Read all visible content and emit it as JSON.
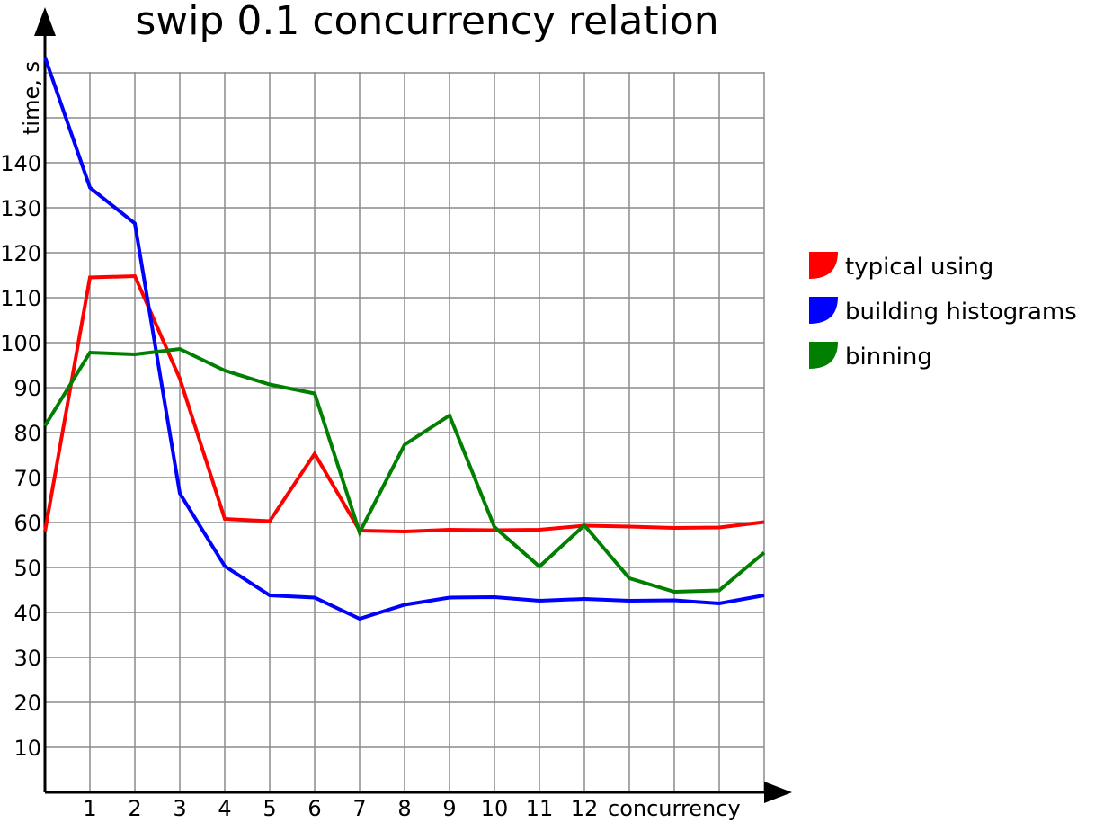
{
  "chart_data": {
    "type": "line",
    "title": "swip 0.1 concurrency relation",
    "xlabel": "concurrency",
    "ylabel": "time, s",
    "x": [
      0,
      1,
      2,
      3,
      4,
      5,
      6,
      7,
      8,
      9,
      10,
      11,
      12,
      13,
      14,
      15,
      16
    ],
    "xticks": [
      "1",
      "2",
      "3",
      "4",
      "5",
      "6",
      "7",
      "8",
      "9",
      "10",
      "11",
      "12"
    ],
    "yticks": [
      "10",
      "20",
      "30",
      "40",
      "50",
      "60",
      "70",
      "80",
      "90",
      "100",
      "110",
      "120",
      "130",
      "140"
    ],
    "xlim": [
      0,
      16
    ],
    "ylim": [
      0,
      164
    ],
    "grid": true,
    "legend_position": "right",
    "series": [
      {
        "name": "typical using",
        "color": "#ff0000",
        "values": [
          58,
          114.5,
          114.8,
          92,
          60.8,
          60.3,
          75.3,
          58.2,
          58,
          58.4,
          58.3,
          58.4,
          59.3,
          59.1,
          58.8,
          58.9,
          60.1
        ]
      },
      {
        "name": "building histograms",
        "color": "#0000ff",
        "values": [
          163.5,
          134.5,
          126.5,
          66.5,
          50.3,
          43.8,
          43.3,
          38.6,
          41.7,
          43.3,
          43.4,
          42.6,
          43,
          42.6,
          42.7,
          42,
          43.8
        ]
      },
      {
        "name": "binning",
        "color": "#007f00",
        "values": [
          81.5,
          97.8,
          97.4,
          98.6,
          93.8,
          90.7,
          88.7,
          57.8,
          77.3,
          83.8,
          59,
          50.2,
          59.4,
          47.6,
          44.6,
          44.9,
          53.3
        ]
      }
    ]
  }
}
